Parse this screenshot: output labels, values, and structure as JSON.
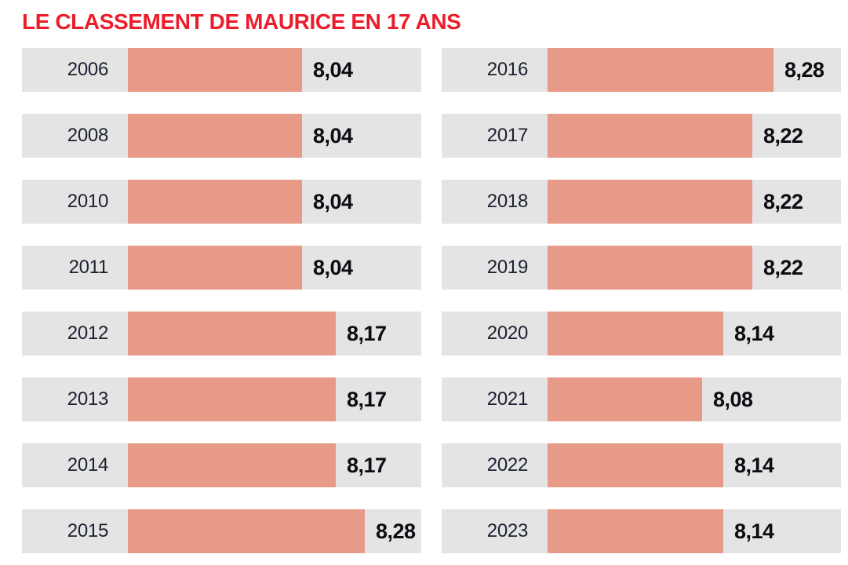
{
  "page": {
    "background": "#ffffff"
  },
  "title": {
    "text": "LE CLASSEMENT DE MAURICE EN 17 ANS"
  },
  "colors": {
    "title_red": "#ed1c2b",
    "band_gray": "#e4e4e4",
    "bar_salmon": "#e89a88",
    "year_text": "#1c2130",
    "value_text": "#0c0c12",
    "background": "#ffffff"
  },
  "chart_data": {
    "type": "bar",
    "orientation": "horizontal",
    "title": "LE CLASSEMENT DE MAURICE EN 17 ANS",
    "categories": [
      "2006",
      "2008",
      "2010",
      "2011",
      "2012",
      "2013",
      "2014",
      "2015",
      "2016",
      "2017",
      "2018",
      "2019",
      "2020",
      "2021",
      "2022",
      "2023"
    ],
    "values": [
      8.04,
      8.04,
      8.04,
      8.04,
      8.17,
      8.17,
      8.17,
      8.28,
      8.28,
      8.22,
      8.22,
      8.22,
      8.14,
      8.08,
      8.14,
      8.14
    ],
    "value_labels": [
      "8,04",
      "8,04",
      "8,04",
      "8,04",
      "8,17",
      "8,17",
      "8,17",
      "8,28",
      "8,28",
      "8,22",
      "8,22",
      "8,22",
      "8,14",
      "8,08",
      "8,14",
      "8,14"
    ],
    "value_range": [
      8.04,
      8.28
    ],
    "decimal_style": "comma",
    "grid": false,
    "legend": "none",
    "layout": "two columns of 8 rows: years 2006-2015 in left column, 2016-2023 in right column; value label printed at end of each bar"
  },
  "columns": [
    {
      "rows": [
        {
          "year": "2006",
          "value": 8.04,
          "value_label": "8,04"
        },
        {
          "year": "2008",
          "value": 8.04,
          "value_label": "8,04"
        },
        {
          "year": "2010",
          "value": 8.04,
          "value_label": "8,04"
        },
        {
          "year": "2011",
          "value": 8.04,
          "value_label": "8,04"
        },
        {
          "year": "2012",
          "value": 8.17,
          "value_label": "8,17"
        },
        {
          "year": "2013",
          "value": 8.17,
          "value_label": "8,17"
        },
        {
          "year": "2014",
          "value": 8.17,
          "value_label": "8,17"
        },
        {
          "year": "2015",
          "value": 8.28,
          "value_label": "8,28"
        }
      ]
    },
    {
      "rows": [
        {
          "year": "2016",
          "value": 8.28,
          "value_label": "8,28"
        },
        {
          "year": "2017",
          "value": 8.22,
          "value_label": "8,22"
        },
        {
          "year": "2018",
          "value": 8.22,
          "value_label": "8,22"
        },
        {
          "year": "2019",
          "value": 8.22,
          "value_label": "8,22"
        },
        {
          "year": "2020",
          "value": 8.14,
          "value_label": "8,14"
        },
        {
          "year": "2021",
          "value": 8.08,
          "value_label": "8,08"
        },
        {
          "year": "2022",
          "value": 8.14,
          "value_label": "8,14"
        },
        {
          "year": "2023",
          "value": 8.14,
          "value_label": "8,14"
        }
      ]
    }
  ]
}
